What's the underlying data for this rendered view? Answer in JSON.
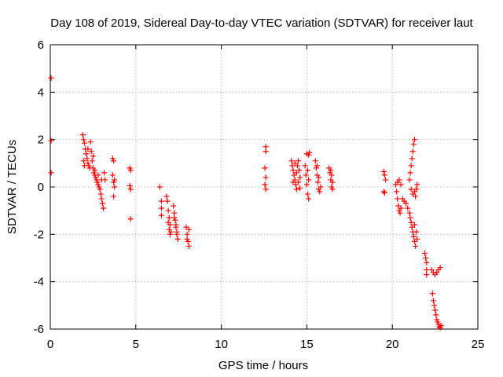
{
  "chart_data": {
    "type": "scatter",
    "title": "Day 108 of 2019, Sidereal Day-to-day VTEC variation (SDTVAR) for receiver laut",
    "xlabel": "GPS time / hours",
    "ylabel": "SDTVAR / TECUs",
    "xlim": [
      0,
      25
    ],
    "ylim": [
      -6,
      6
    ],
    "xticks": [
      0,
      5,
      10,
      15,
      20,
      25
    ],
    "yticks": [
      -6,
      -4,
      -2,
      0,
      2,
      4,
      6
    ],
    "xtick_labels": [
      "0",
      "5",
      "10",
      "15",
      "20",
      "25"
    ],
    "ytick_labels": [
      "-6",
      "-4",
      "-2",
      "0",
      "2",
      "4",
      "6"
    ],
    "grid": true,
    "marker": "+",
    "marker_color": "#ff0000",
    "series": [
      {
        "name": "SDTVAR",
        "points": [
          [
            0.05,
            4.6
          ],
          [
            0.05,
            1.95
          ],
          [
            0.05,
            0.6
          ],
          [
            1.9,
            2.2
          ],
          [
            1.95,
            2.0
          ],
          [
            2.0,
            1.85
          ],
          [
            2.05,
            1.6
          ],
          [
            2.1,
            1.4
          ],
          [
            2.15,
            1.2
          ],
          [
            2.2,
            1.0
          ],
          [
            2.25,
            0.9
          ],
          [
            2.3,
            0.8
          ],
          [
            2.35,
            1.9
          ],
          [
            2.4,
            1.5
          ],
          [
            2.45,
            1.1
          ],
          [
            2.5,
            0.8
          ],
          [
            2.55,
            0.6
          ],
          [
            2.6,
            0.5
          ],
          [
            2.65,
            0.4
          ],
          [
            2.7,
            0.3
          ],
          [
            2.75,
            0.2
          ],
          [
            2.8,
            0.1
          ],
          [
            2.85,
            0.0
          ],
          [
            2.9,
            -0.1
          ],
          [
            2.95,
            -0.3
          ],
          [
            3.0,
            -0.5
          ],
          [
            3.05,
            -0.7
          ],
          [
            3.1,
            -0.9
          ],
          [
            3.15,
            0.6
          ],
          [
            3.2,
            0.3
          ],
          [
            2.6,
            0.7
          ],
          [
            2.8,
            0.5
          ],
          [
            3.0,
            0.3
          ],
          [
            2.2,
            1.6
          ],
          [
            2.5,
            1.3
          ],
          [
            1.95,
            1.1
          ],
          [
            2.0,
            0.9
          ],
          [
            3.65,
            1.2
          ],
          [
            3.7,
            1.1
          ],
          [
            3.65,
            0.5
          ],
          [
            3.7,
            0.2
          ],
          [
            3.75,
            0.0
          ],
          [
            3.7,
            -0.4
          ],
          [
            3.75,
            0.3
          ],
          [
            4.65,
            0.8
          ],
          [
            4.7,
            0.7
          ],
          [
            4.65,
            0.05
          ],
          [
            4.7,
            -0.1
          ],
          [
            4.7,
            -1.35
          ],
          [
            6.4,
            0.0
          ],
          [
            6.5,
            -0.6
          ],
          [
            6.5,
            -0.9
          ],
          [
            6.5,
            -1.2
          ],
          [
            6.8,
            -0.4
          ],
          [
            6.85,
            -0.6
          ],
          [
            6.9,
            -1.0
          ],
          [
            6.95,
            -1.3
          ],
          [
            7.0,
            -1.6
          ],
          [
            7.05,
            -1.9
          ],
          [
            6.9,
            -1.5
          ],
          [
            6.95,
            -1.8
          ],
          [
            7.0,
            -2.0
          ],
          [
            7.2,
            -0.8
          ],
          [
            7.25,
            -1.1
          ],
          [
            7.3,
            -1.4
          ],
          [
            7.35,
            -1.7
          ],
          [
            7.4,
            -2.0
          ],
          [
            7.45,
            -2.2
          ],
          [
            7.25,
            -1.3
          ],
          [
            7.35,
            -1.6
          ],
          [
            7.4,
            -1.9
          ],
          [
            7.95,
            -1.7
          ],
          [
            8.0,
            -2.0
          ],
          [
            8.05,
            -2.3
          ],
          [
            8.1,
            -2.5
          ],
          [
            8.0,
            -2.2
          ],
          [
            8.1,
            -1.8
          ],
          [
            12.6,
            1.7
          ],
          [
            12.6,
            1.5
          ],
          [
            12.55,
            0.8
          ],
          [
            12.6,
            0.4
          ],
          [
            12.55,
            0.1
          ],
          [
            12.6,
            -0.1
          ],
          [
            14.1,
            1.1
          ],
          [
            14.15,
            0.9
          ],
          [
            14.2,
            0.7
          ],
          [
            14.25,
            0.5
          ],
          [
            14.3,
            0.3
          ],
          [
            14.35,
            0.1
          ],
          [
            14.4,
            -0.1
          ],
          [
            14.45,
            0.9
          ],
          [
            14.5,
            1.1
          ],
          [
            14.55,
            0.7
          ],
          [
            14.6,
            0.4
          ],
          [
            14.2,
            0.2
          ],
          [
            14.3,
            1.0
          ],
          [
            14.4,
            0.6
          ],
          [
            14.5,
            0.2
          ],
          [
            14.6,
            -0.05
          ],
          [
            14.9,
            0.9
          ],
          [
            14.95,
            0.5
          ],
          [
            15.0,
            0.1
          ],
          [
            15.05,
            -0.3
          ],
          [
            15.1,
            -0.5
          ],
          [
            15.0,
            1.4
          ],
          [
            15.1,
            1.35
          ],
          [
            15.15,
            1.45
          ],
          [
            15.05,
            0.7
          ],
          [
            15.1,
            0.3
          ],
          [
            15.5,
            1.1
          ],
          [
            15.55,
            0.8
          ],
          [
            15.6,
            0.5
          ],
          [
            15.65,
            0.2
          ],
          [
            15.7,
            -0.1
          ],
          [
            15.75,
            -0.2
          ],
          [
            15.6,
            0.9
          ],
          [
            15.7,
            0.4
          ],
          [
            15.8,
            0.0
          ],
          [
            16.3,
            0.8
          ],
          [
            16.35,
            0.6
          ],
          [
            16.4,
            0.3
          ],
          [
            16.45,
            0.0
          ],
          [
            16.5,
            -0.1
          ],
          [
            16.4,
            0.7
          ],
          [
            16.45,
            0.5
          ],
          [
            16.5,
            0.2
          ],
          [
            19.5,
            0.65
          ],
          [
            19.55,
            0.5
          ],
          [
            19.6,
            0.3
          ],
          [
            19.5,
            -0.2
          ],
          [
            19.55,
            -0.25
          ],
          [
            20.2,
            0.1
          ],
          [
            20.25,
            -0.2
          ],
          [
            20.3,
            -0.5
          ],
          [
            20.35,
            -0.8
          ],
          [
            20.4,
            -1.0
          ],
          [
            20.45,
            -1.1
          ],
          [
            20.5,
            -0.9
          ],
          [
            20.3,
            0.2
          ],
          [
            20.4,
            0.3
          ],
          [
            20.5,
            0.1
          ],
          [
            20.6,
            -0.5
          ],
          [
            20.7,
            -0.6
          ],
          [
            20.8,
            -0.7
          ],
          [
            20.9,
            -0.9
          ],
          [
            21.0,
            -1.1
          ],
          [
            21.05,
            -1.3
          ],
          [
            21.1,
            -1.5
          ],
          [
            21.15,
            -1.7
          ],
          [
            21.2,
            -1.9
          ],
          [
            21.25,
            -2.1
          ],
          [
            21.3,
            -2.3
          ],
          [
            21.35,
            -2.5
          ],
          [
            21.3,
            -1.6
          ],
          [
            21.4,
            -1.9
          ],
          [
            21.45,
            -2.2
          ],
          [
            21.0,
            0.3
          ],
          [
            21.05,
            0.6
          ],
          [
            21.1,
            0.9
          ],
          [
            21.15,
            1.2
          ],
          [
            21.2,
            1.5
          ],
          [
            21.25,
            1.8
          ],
          [
            21.3,
            2.0
          ],
          [
            21.3,
            -0.2
          ],
          [
            21.35,
            -0.4
          ],
          [
            21.4,
            -0.1
          ],
          [
            21.45,
            0.1
          ],
          [
            21.2,
            -0.3
          ],
          [
            21.1,
            -0.1
          ],
          [
            21.9,
            -2.8
          ],
          [
            21.95,
            -3.0
          ],
          [
            22.0,
            -3.2
          ],
          [
            22.0,
            -3.5
          ],
          [
            22.0,
            -3.7
          ],
          [
            22.3,
            -3.5
          ],
          [
            22.4,
            -3.6
          ],
          [
            22.5,
            -3.7
          ],
          [
            22.6,
            -3.6
          ],
          [
            22.7,
            -3.5
          ],
          [
            22.8,
            -3.4
          ],
          [
            22.35,
            -4.5
          ],
          [
            22.4,
            -4.8
          ],
          [
            22.45,
            -5.0
          ],
          [
            22.5,
            -5.2
          ],
          [
            22.55,
            -5.4
          ],
          [
            22.6,
            -5.6
          ],
          [
            22.65,
            -5.7
          ],
          [
            22.7,
            -5.8
          ],
          [
            22.75,
            -5.9
          ],
          [
            22.8,
            -5.95
          ],
          [
            22.85,
            -5.85
          ]
        ]
      }
    ]
  }
}
